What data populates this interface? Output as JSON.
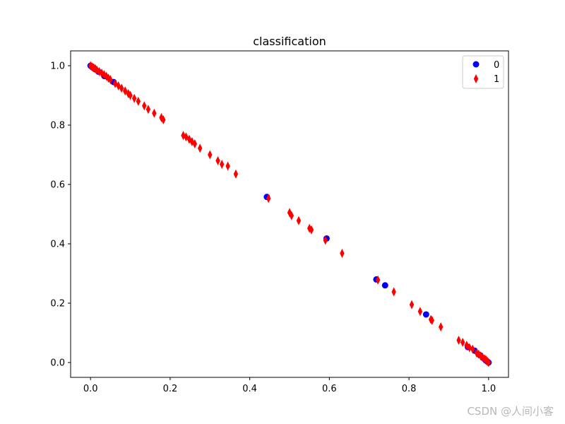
{
  "chart_data": {
    "type": "scatter",
    "title": "classification",
    "xlabel": "",
    "ylabel": "",
    "xlim": [
      -0.05,
      1.05
    ],
    "ylim": [
      -0.05,
      1.05
    ],
    "xticks": [
      0.0,
      0.2,
      0.4,
      0.6,
      0.8,
      1.0
    ],
    "yticks": [
      0.0,
      0.2,
      0.4,
      0.6,
      0.8,
      1.0
    ],
    "xtick_labels": [
      "0.0",
      "0.2",
      "0.4",
      "0.6",
      "0.8",
      "1.0"
    ],
    "ytick_labels": [
      "0.0",
      "0.2",
      "0.4",
      "0.6",
      "0.8",
      "1.0"
    ],
    "grid": false,
    "legend_position": "top-right",
    "series": [
      {
        "name": "0",
        "marker": "circle",
        "color": "#0000ff",
        "points": [
          [
            0.0,
            1.0
          ],
          [
            0.003,
            0.997
          ],
          [
            0.005,
            0.995
          ],
          [
            0.008,
            0.992
          ],
          [
            0.012,
            0.988
          ],
          [
            0.02,
            0.98
          ],
          [
            0.035,
            0.965
          ],
          [
            0.058,
            0.945
          ],
          [
            0.443,
            0.558
          ],
          [
            0.593,
            0.418
          ],
          [
            0.718,
            0.28
          ],
          [
            0.74,
            0.26
          ],
          [
            0.843,
            0.162
          ],
          [
            0.948,
            0.052
          ],
          [
            0.965,
            0.04
          ],
          [
            0.978,
            0.025
          ],
          [
            0.988,
            0.014
          ],
          [
            0.993,
            0.007
          ],
          [
            0.997,
            0.003
          ],
          [
            1.0,
            0.0
          ]
        ]
      },
      {
        "name": "1",
        "marker": "diamond",
        "color": "#ff0000",
        "points": [
          [
            0.0,
            1.0
          ],
          [
            0.004,
            0.996
          ],
          [
            0.008,
            0.993
          ],
          [
            0.012,
            0.99
          ],
          [
            0.016,
            0.985
          ],
          [
            0.022,
            0.98
          ],
          [
            0.028,
            0.975
          ],
          [
            0.034,
            0.97
          ],
          [
            0.04,
            0.964
          ],
          [
            0.045,
            0.958
          ],
          [
            0.05,
            0.953
          ],
          [
            0.062,
            0.94
          ],
          [
            0.07,
            0.932
          ],
          [
            0.078,
            0.924
          ],
          [
            0.087,
            0.915
          ],
          [
            0.095,
            0.906
          ],
          [
            0.1,
            0.9
          ],
          [
            0.11,
            0.89
          ],
          [
            0.12,
            0.88
          ],
          [
            0.135,
            0.865
          ],
          [
            0.145,
            0.853
          ],
          [
            0.16,
            0.84
          ],
          [
            0.178,
            0.825
          ],
          [
            0.183,
            0.818
          ],
          [
            0.233,
            0.765
          ],
          [
            0.24,
            0.76
          ],
          [
            0.248,
            0.752
          ],
          [
            0.255,
            0.744
          ],
          [
            0.262,
            0.737
          ],
          [
            0.275,
            0.722
          ],
          [
            0.3,
            0.7
          ],
          [
            0.32,
            0.68
          ],
          [
            0.33,
            0.668
          ],
          [
            0.345,
            0.662
          ],
          [
            0.365,
            0.635
          ],
          [
            0.447,
            0.553
          ],
          [
            0.5,
            0.505
          ],
          [
            0.505,
            0.495
          ],
          [
            0.523,
            0.478
          ],
          [
            0.55,
            0.452
          ],
          [
            0.555,
            0.447
          ],
          [
            0.59,
            0.412
          ],
          [
            0.632,
            0.368
          ],
          [
            0.722,
            0.278
          ],
          [
            0.762,
            0.238
          ],
          [
            0.807,
            0.195
          ],
          [
            0.828,
            0.172
          ],
          [
            0.855,
            0.145
          ],
          [
            0.858,
            0.142
          ],
          [
            0.88,
            0.12
          ],
          [
            0.925,
            0.075
          ],
          [
            0.935,
            0.068
          ],
          [
            0.945,
            0.058
          ],
          [
            0.952,
            0.05
          ],
          [
            0.96,
            0.045
          ],
          [
            0.97,
            0.032
          ],
          [
            0.975,
            0.028
          ],
          [
            0.98,
            0.022
          ],
          [
            0.985,
            0.018
          ],
          [
            0.99,
            0.012
          ],
          [
            0.994,
            0.008
          ],
          [
            0.997,
            0.004
          ],
          [
            1.0,
            0.0
          ]
        ]
      }
    ]
  },
  "watermark": "CSDN @人间小客"
}
